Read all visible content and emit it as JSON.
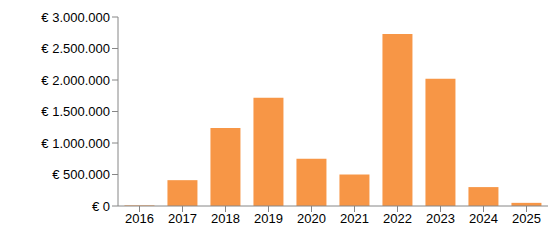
{
  "chart_data": {
    "type": "bar",
    "categories": [
      "2016",
      "2017",
      "2018",
      "2019",
      "2020",
      "2021",
      "2022",
      "2023",
      "2024",
      "2025"
    ],
    "values": [
      10000,
      410000,
      1240000,
      1720000,
      750000,
      500000,
      2730000,
      2020000,
      300000,
      50000
    ],
    "color": "#f79646",
    "ylim": [
      0,
      3000000
    ],
    "yticks": [
      {
        "value": 0,
        "label": "€ 0"
      },
      {
        "value": 500000,
        "label": "€ 500.000"
      },
      {
        "value": 1000000,
        "label": "€ 1.000.000"
      },
      {
        "value": 1500000,
        "label": "€ 1.500.000"
      },
      {
        "value": 2000000,
        "label": "€ 2.000.000"
      },
      {
        "value": 2500000,
        "label": "€ 2.500.000"
      },
      {
        "value": 3000000,
        "label": "€ 3.000.000"
      }
    ],
    "grid": false
  }
}
